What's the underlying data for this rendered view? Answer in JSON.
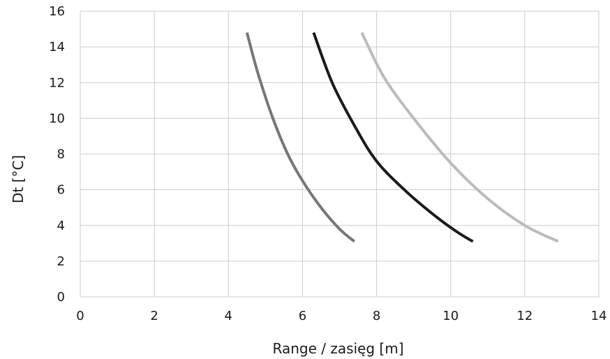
{
  "chart_data": {
    "type": "line",
    "title": "",
    "xlabel": "Range / zasięg [m]",
    "ylabel": "Dt [°C]",
    "xlim": [
      0,
      14
    ],
    "ylim": [
      0,
      16
    ],
    "x_ticks": [
      "0",
      "2",
      "4",
      "6",
      "8",
      "10",
      "12",
      "14"
    ],
    "y_ticks": [
      "0",
      "2",
      "4",
      "6",
      "8",
      "10",
      "12",
      "14",
      "16"
    ],
    "grid": true,
    "legend": "none",
    "series": [
      {
        "color": "#777777",
        "points": [
          [
            4.5,
            14.8
          ],
          [
            4.8,
            12.5
          ],
          [
            5.2,
            10.0
          ],
          [
            5.6,
            8.0
          ],
          [
            6.0,
            6.5
          ],
          [
            6.5,
            5.0
          ],
          [
            7.0,
            3.8
          ],
          [
            7.4,
            3.1
          ]
        ]
      },
      {
        "color": "#1a1a1a",
        "points": [
          [
            6.3,
            14.8
          ],
          [
            6.8,
            12.0
          ],
          [
            7.4,
            9.6
          ],
          [
            8.0,
            7.6
          ],
          [
            8.8,
            5.9
          ],
          [
            9.6,
            4.5
          ],
          [
            10.2,
            3.6
          ],
          [
            10.6,
            3.1
          ]
        ]
      },
      {
        "color": "#bbbbbb",
        "points": [
          [
            7.6,
            14.8
          ],
          [
            8.2,
            12.3
          ],
          [
            9.0,
            10.0
          ],
          [
            10.0,
            7.5
          ],
          [
            11.0,
            5.5
          ],
          [
            12.0,
            4.0
          ],
          [
            12.9,
            3.1
          ]
        ]
      }
    ]
  }
}
